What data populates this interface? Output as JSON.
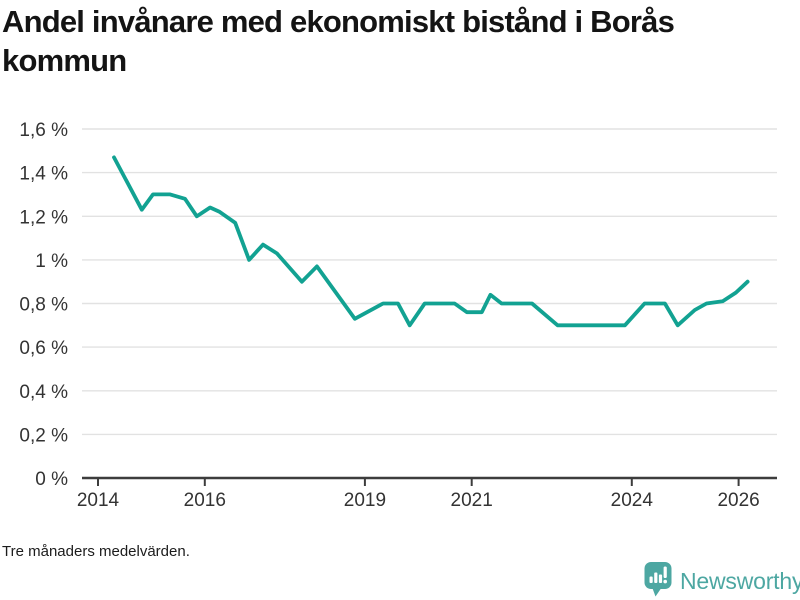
{
  "title": {
    "line1": "Andel invånare med ekonomiskt bistånd i Borås",
    "line2": "kommun"
  },
  "footer": {
    "note": "Tre månaders medelvärden."
  },
  "branding": {
    "name": "Newsworthy",
    "icon": "bar-chart-speech-bubble-icon",
    "color": "#4DA7A2"
  },
  "chart_data": {
    "type": "line",
    "title": "Andel invånare med ekonomiskt bistånd i Borås kommun",
    "subtitle": "Tre månaders medelvärden.",
    "xlabel": "",
    "ylabel": "",
    "unit": "%",
    "decimal_separator": ",",
    "grid": true,
    "line_color": "#12A292",
    "axis_color": "#3d3d3d",
    "grid_color": "#e2e2e2",
    "tick_label_color": "#333333",
    "xlim": [
      2013.7,
      2026.72
    ],
    "ylim": [
      0,
      1.6
    ],
    "y_ticks": [
      {
        "value": 0,
        "label": "0 %"
      },
      {
        "value": 0.2,
        "label": "0,2 %"
      },
      {
        "value": 0.4,
        "label": "0,4 %"
      },
      {
        "value": 0.6,
        "label": "0,6 %"
      },
      {
        "value": 0.8,
        "label": "0,8 %"
      },
      {
        "value": 1.0,
        "label": "1 %"
      },
      {
        "value": 1.2,
        "label": "1,2 %"
      },
      {
        "value": 1.4,
        "label": "1,4 %"
      },
      {
        "value": 1.6,
        "label": "1,6 %"
      }
    ],
    "x_ticks": [
      {
        "value": 2014,
        "label": "2014"
      },
      {
        "value": 2016,
        "label": "2016"
      },
      {
        "value": 2019,
        "label": "2019"
      },
      {
        "value": 2021,
        "label": "2021"
      },
      {
        "value": 2024,
        "label": "2024"
      },
      {
        "value": 2026,
        "label": "2026"
      }
    ],
    "series": [
      {
        "name": "Andel invånare med ekonomiskt bistånd",
        "points": [
          [
            2014.3,
            1.47
          ],
          [
            2014.82,
            1.23
          ],
          [
            2015.03,
            1.3
          ],
          [
            2015.35,
            1.3
          ],
          [
            2015.63,
            1.28
          ],
          [
            2015.85,
            1.2
          ],
          [
            2016.1,
            1.24
          ],
          [
            2016.28,
            1.22
          ],
          [
            2016.57,
            1.17
          ],
          [
            2016.83,
            1.0
          ],
          [
            2017.09,
            1.07
          ],
          [
            2017.35,
            1.03
          ],
          [
            2017.82,
            0.9
          ],
          [
            2018.1,
            0.97
          ],
          [
            2018.81,
            0.73
          ],
          [
            2019.34,
            0.8
          ],
          [
            2019.62,
            0.8
          ],
          [
            2019.84,
            0.7
          ],
          [
            2020.12,
            0.8
          ],
          [
            2020.68,
            0.8
          ],
          [
            2020.91,
            0.76
          ],
          [
            2021.19,
            0.76
          ],
          [
            2021.35,
            0.84
          ],
          [
            2021.56,
            0.8
          ],
          [
            2022.13,
            0.8
          ],
          [
            2022.61,
            0.7
          ],
          [
            2023.87,
            0.7
          ],
          [
            2024.24,
            0.8
          ],
          [
            2024.62,
            0.8
          ],
          [
            2024.86,
            0.7
          ],
          [
            2025.18,
            0.77
          ],
          [
            2025.4,
            0.8
          ],
          [
            2025.7,
            0.81
          ],
          [
            2025.95,
            0.85
          ],
          [
            2026.17,
            0.9
          ]
        ]
      }
    ]
  }
}
